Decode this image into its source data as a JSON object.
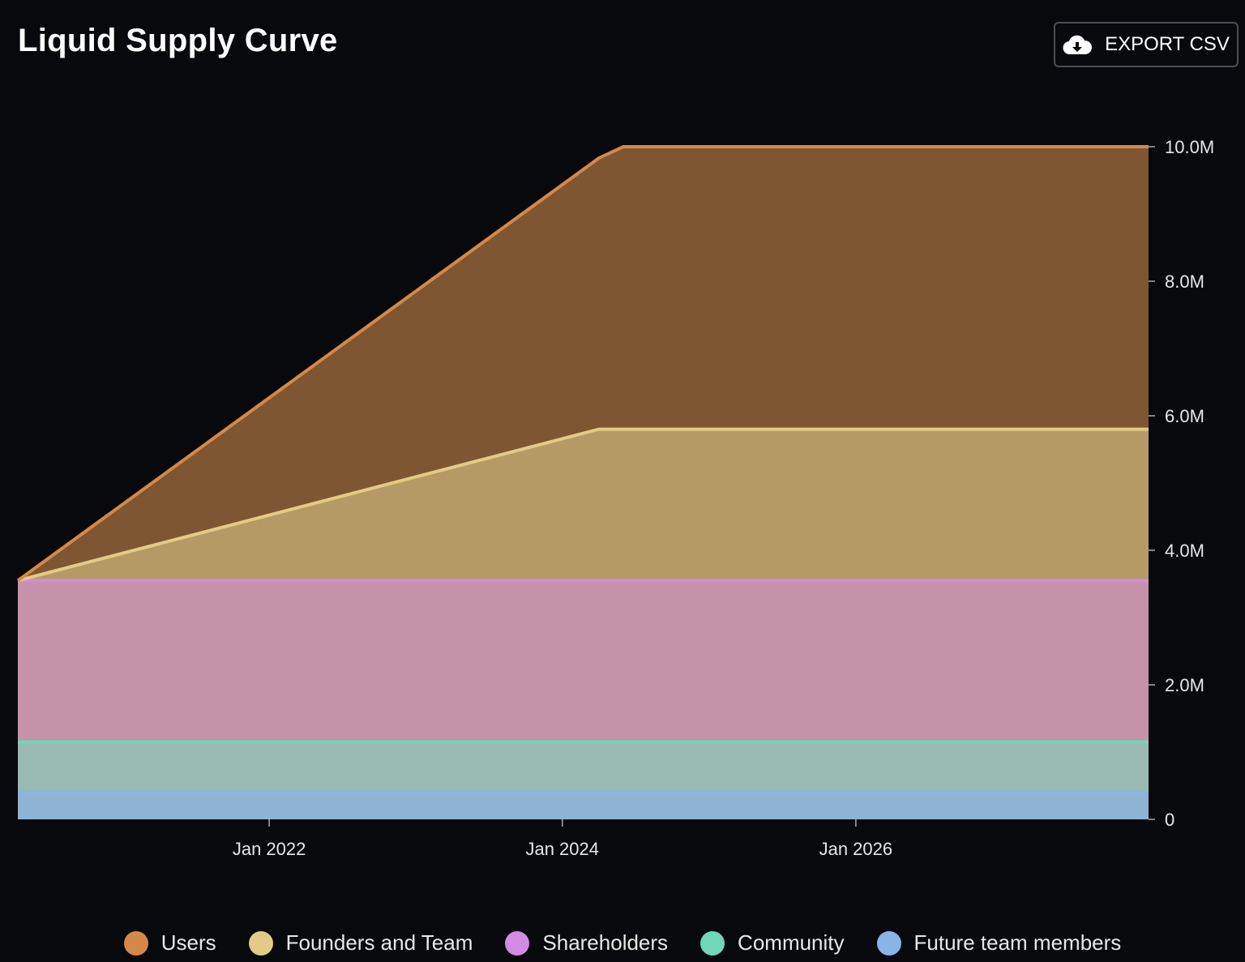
{
  "header": {
    "title": "Liquid Supply Curve",
    "export_label": "EXPORT CSV",
    "export_icon": "cloud-download-icon"
  },
  "chart_data": {
    "type": "area",
    "stacked": true,
    "title": "Liquid Supply Curve",
    "xlabel": "",
    "ylabel": "",
    "x": [
      "2020-04-15",
      "2024-04-01",
      "2024-06-01",
      "2027-12-31"
    ],
    "ylim": [
      0,
      10000000
    ],
    "y_ticks": [
      0,
      2000000,
      4000000,
      6000000,
      8000000,
      10000000
    ],
    "y_tick_labels": [
      "0",
      "2.0M",
      "4.0M",
      "6.0M",
      "8.0M",
      "10.0M"
    ],
    "x_ticks": [
      "2022-01-01",
      "2024-01-01",
      "2026-01-01"
    ],
    "x_tick_labels": [
      "Jan 2022",
      "Jan 2024",
      "Jan 2026"
    ],
    "y_axis_position": "right",
    "grid": false,
    "legend_position": "bottom",
    "series": [
      {
        "name": "Future team members",
        "line_color": "#8ab4e8",
        "fill_color": "#8fb3d3",
        "values": [
          400000,
          400000,
          400000,
          400000
        ]
      },
      {
        "name": "Community",
        "line_color": "#6fd7b5",
        "fill_color": "#98bab2",
        "values": [
          750000,
          750000,
          750000,
          750000
        ]
      },
      {
        "name": "Shareholders",
        "line_color": "#d28be0",
        "fill_color": "#c692aa",
        "values": [
          2400000,
          2400000,
          2400000,
          2400000
        ]
      },
      {
        "name": "Founders and Team",
        "line_color": "#e2cb86",
        "fill_color": "#b69a66",
        "values": [
          0,
          2250000,
          2250000,
          2250000
        ]
      },
      {
        "name": "Users",
        "line_color": "#d4894a",
        "fill_color": "#7f5632",
        "values": [
          0,
          4030000,
          4200000,
          4200000
        ]
      }
    ]
  },
  "legend": [
    {
      "label": "Users",
      "color": "#d4894a"
    },
    {
      "label": "Founders and Team",
      "color": "#e2cb86"
    },
    {
      "label": "Shareholders",
      "color": "#d28be0"
    },
    {
      "label": "Community",
      "color": "#6fd7b5"
    },
    {
      "label": "Future team members",
      "color": "#8ab4e8"
    }
  ]
}
